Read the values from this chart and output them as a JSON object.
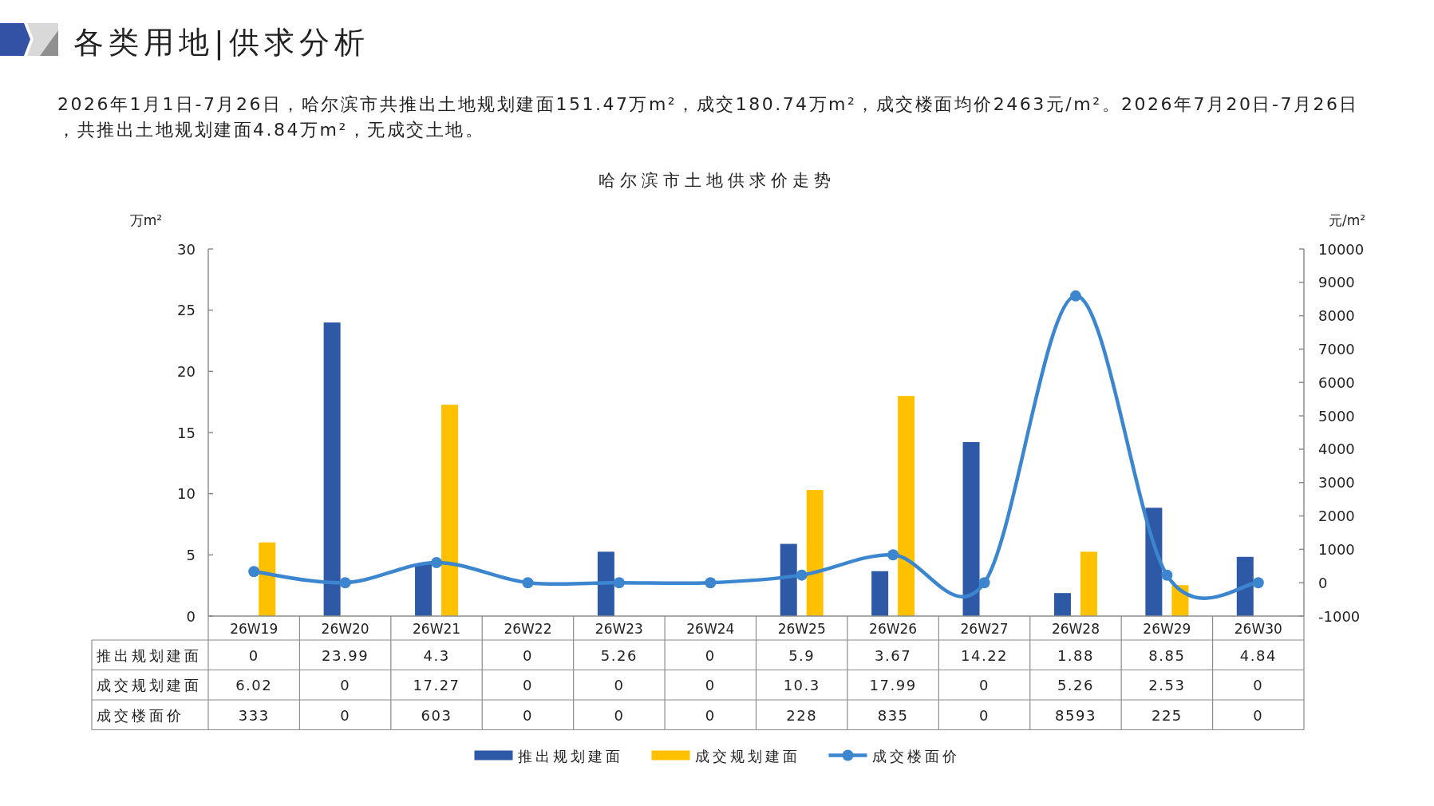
{
  "chart_data": {
    "type": "bar",
    "title": "哈尔滨市土地供求价走势",
    "subtitle": "2026年1月1日-7月26日，哈尔滨市共推出土地规划建面151.47万m²，成交180.74万m²，成交楼面均价2463元/m²。2026年7月20日-7月26日，共推出土地规划建面4.84万m²，无成交土地。",
    "annotations": [
      "各类用地|供求分析"
    ],
    "ylabel": "万m²",
    "y2label": "元/m²",
    "categories": [
      "26W19",
      "26W20",
      "26W21",
      "26W22",
      "26W23",
      "26W24",
      "26W25",
      "26W26",
      "26W27",
      "26W28",
      "26W29",
      "26W30"
    ],
    "series": [
      {
        "name": "推出规划建面",
        "color": "#2e59a7",
        "values": [
          0,
          23.99,
          4.3,
          0,
          5.26,
          0,
          5.9,
          3.67,
          14.22,
          1.88,
          8.85,
          4.84
        ]
      },
      {
        "name": "成交规划建面",
        "color": "#ffc000",
        "values": [
          6.02,
          0,
          17.27,
          0,
          0,
          0,
          10.3,
          17.99,
          0,
          5.26,
          2.53,
          0
        ]
      },
      {
        "name": "成交楼面价",
        "type": "line",
        "axis": "y2",
        "color": "#3b86cf",
        "values": [
          333,
          0,
          603,
          0,
          0,
          0,
          228,
          835,
          0,
          8593,
          225,
          0
        ]
      }
    ],
    "ylim": [
      0,
      30
    ],
    "yticks": [
      0,
      5,
      10,
      15,
      20,
      25,
      30
    ],
    "y2lim": [
      -1000,
      10000
    ],
    "y2ticks": [
      -1000,
      0,
      1000,
      2000,
      3000,
      4000,
      5000,
      6000,
      7000,
      8000,
      9000,
      10000
    ],
    "marker": "circle",
    "legend": "bottom",
    "data_labels": true
  }
}
